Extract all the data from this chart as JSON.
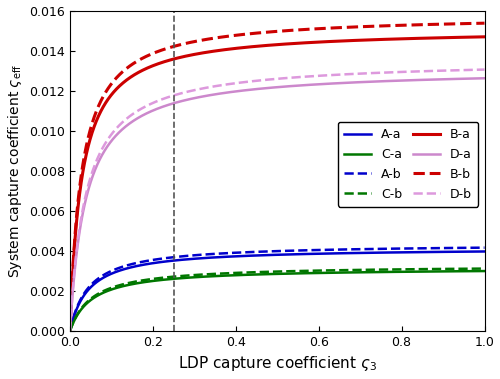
{
  "xlabel": "LDP capture coefficient $\\varsigma_3$",
  "ylabel": "System capture coefficient $\\varsigma_{\\mathrm{eff}}$",
  "xlim": [
    0,
    1.0
  ],
  "ylim": [
    0,
    0.016
  ],
  "yticks": [
    0.0,
    0.002,
    0.004,
    0.006,
    0.008,
    0.01,
    0.012,
    0.014,
    0.016
  ],
  "xticks": [
    0.0,
    0.2,
    0.4,
    0.6,
    0.8,
    1.0
  ],
  "vline_x": 0.25,
  "curves": {
    "A-a": {
      "color": "#0000cc",
      "style": "solid",
      "asymptote": 0.00415,
      "b": 0.045
    },
    "A-b": {
      "color": "#0000cc",
      "style": "dashed",
      "asymptote": 0.00435,
      "b": 0.045
    },
    "B-a": {
      "color": "#cc0000",
      "style": "solid",
      "asymptote": 0.0151,
      "b": 0.028
    },
    "B-b": {
      "color": "#cc0000",
      "style": "dashed",
      "asymptote": 0.0158,
      "b": 0.028
    },
    "C-a": {
      "color": "#007700",
      "style": "solid",
      "asymptote": 0.00315,
      "b": 0.052
    },
    "C-b": {
      "color": "#007700",
      "style": "dashed",
      "asymptote": 0.00328,
      "b": 0.052
    },
    "D-a": {
      "color": "#cc88cc",
      "style": "solid",
      "asymptote": 0.0131,
      "b": 0.038
    },
    "D-b": {
      "color": "#dd99dd",
      "style": "dashed",
      "asymptote": 0.01355,
      "b": 0.038
    }
  },
  "legend_order": [
    "A-a",
    "A-b",
    "B-a",
    "B-b",
    "C-a",
    "C-b",
    "D-a",
    "D-b"
  ],
  "background_color": "#ffffff"
}
